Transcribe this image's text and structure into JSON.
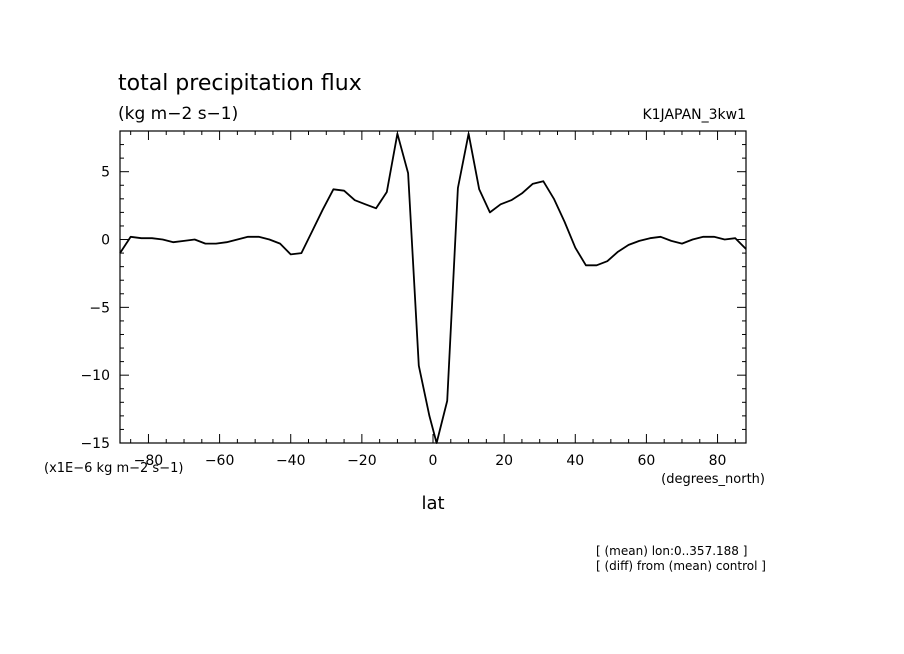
{
  "chart_data": {
    "type": "line",
    "title": "total precipitation flux",
    "units": "(kg m−2 s−1)",
    "run_label": "K1JAPAN_3kw1",
    "xlabel": "lat",
    "x_units": "(degrees_north)",
    "y_scale_note": "(x1E−6 kg m−2 s−1)",
    "xlim": [
      -88,
      88
    ],
    "ylim": [
      -15,
      8
    ],
    "x_ticks": [
      -80,
      -60,
      -40,
      -20,
      0,
      20,
      40,
      60,
      80
    ],
    "x_tick_labels": [
      "−80",
      "−60",
      "−40",
      "−20",
      "0",
      "20",
      "40",
      "60",
      "80"
    ],
    "y_ticks": [
      5,
      0,
      -5,
      -10,
      -15
    ],
    "y_tick_labels": [
      "5",
      "0",
      "−5",
      "−10",
      "−15"
    ],
    "grid": false,
    "series": [
      {
        "x": [
          -88,
          -85,
          -82,
          -79,
          -76,
          -73,
          -70,
          -67,
          -64,
          -61,
          -58,
          -55,
          -52,
          -49,
          -46,
          -43,
          -40,
          -37,
          -34,
          -31,
          -28,
          -25,
          -22,
          -19,
          -16,
          -13,
          -10,
          -7,
          -4,
          -1,
          1,
          4,
          7,
          10,
          13,
          16,
          19,
          22,
          25,
          28,
          31,
          34,
          37,
          40,
          43,
          46,
          49,
          52,
          55,
          58,
          61,
          64,
          67,
          70,
          73,
          76,
          79,
          82,
          85,
          88
        ],
        "y": [
          -1.0,
          0.2,
          0.1,
          0.1,
          0.0,
          -0.2,
          -0.1,
          0.0,
          -0.3,
          -0.3,
          -0.2,
          0.0,
          0.2,
          0.2,
          0.0,
          -0.3,
          -1.1,
          -1.0,
          0.6,
          2.2,
          3.7,
          3.6,
          2.9,
          2.6,
          2.3,
          3.5,
          7.8,
          4.9,
          -9.3,
          -13.0,
          -15.0,
          -11.9,
          3.8,
          7.8,
          3.7,
          2.0,
          2.6,
          2.9,
          3.4,
          4.1,
          4.3,
          3.0,
          1.3,
          -0.6,
          -1.9,
          -1.9,
          -1.6,
          -0.9,
          -0.4,
          -0.1,
          0.1,
          0.2,
          -0.1,
          -0.3,
          0.0,
          0.2,
          0.2,
          0.0,
          0.1,
          -0.7
        ]
      }
    ]
  },
  "notes": [
    "[ (mean) lon:0..357.188 ]",
    "[ (diff) from (mean) control ]"
  ]
}
